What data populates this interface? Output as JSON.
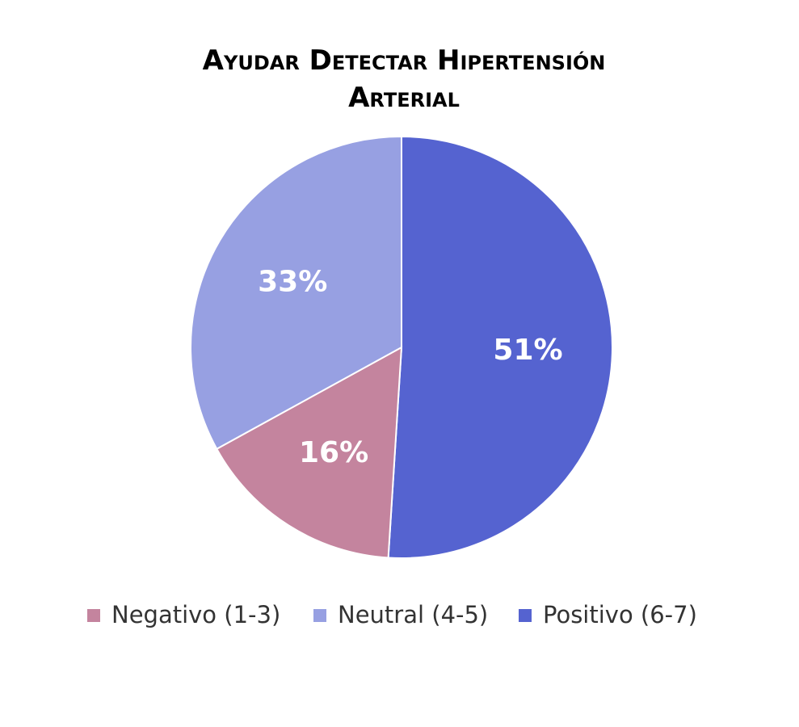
{
  "chart_data": {
    "type": "pie",
    "title": "Ayudar Detectar Hipertensión Arterial",
    "categories": [
      "Negativo (1-3)",
      "Neutral (4-5)",
      "Positivo (6-7)"
    ],
    "values": [
      16,
      33,
      51
    ],
    "value_labels": [
      "16%",
      "33%",
      "51%"
    ],
    "colors": [
      "#c4849e",
      "#97a0e2",
      "#5563d0"
    ]
  }
}
